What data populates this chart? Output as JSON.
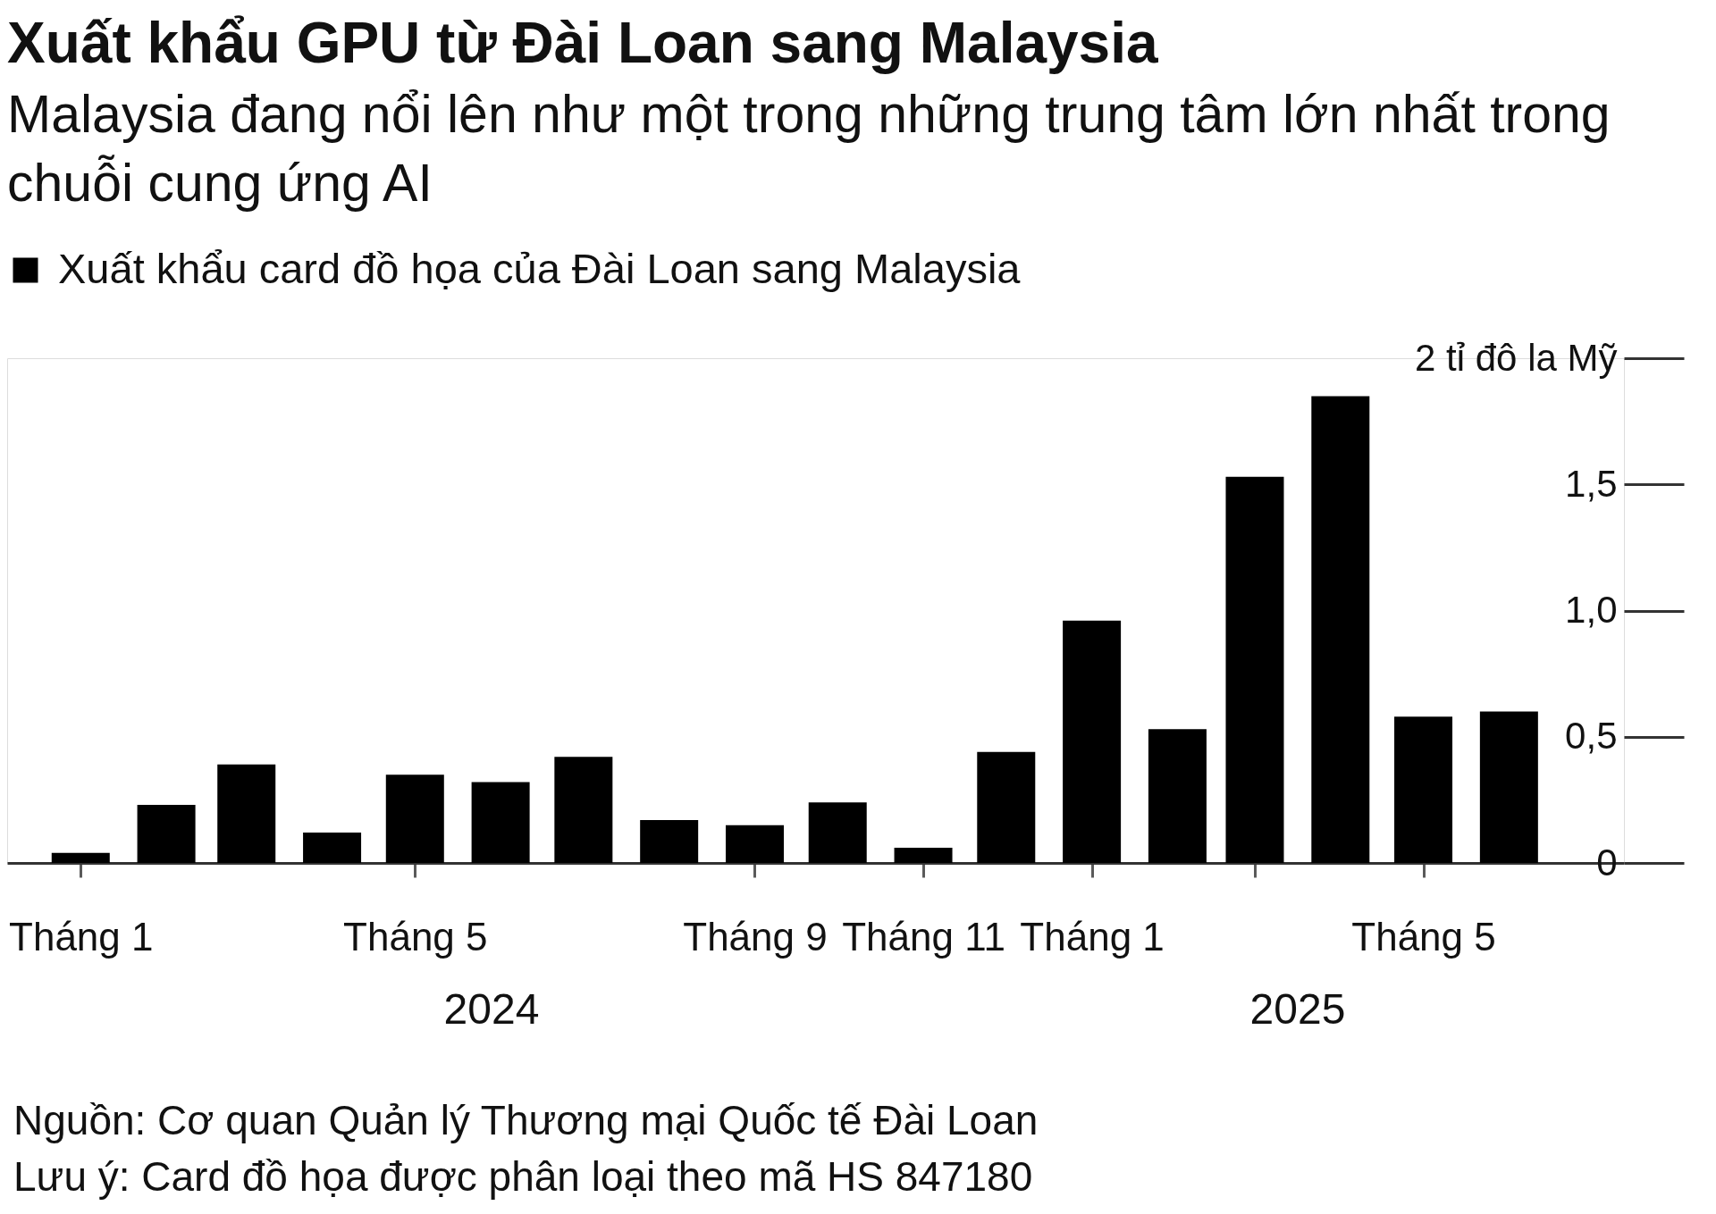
{
  "chart_data": {
    "type": "bar",
    "title": "Xuất khẩu GPU từ Đài Loan sang Malaysia",
    "subtitle": "Malaysia đang nổi lên như một trong những trung tâm lớn nhất trong chuỗi cung ứng AI",
    "x": [
      "2024-01",
      "2024-02",
      "2024-03",
      "2024-04",
      "2024-05",
      "2024-06",
      "2024-07",
      "2024-08",
      "2024-09",
      "2024-10",
      "2024-11",
      "2024-12",
      "2025-01",
      "2025-02",
      "2025-03",
      "2025-04",
      "2025-05",
      "2025-06"
    ],
    "series": [
      {
        "name": "Xuất khẩu card đồ họa của Đài Loan sang Malaysia",
        "color": "#000000",
        "values": [
          0.04,
          0.23,
          0.39,
          0.12,
          0.35,
          0.32,
          0.42,
          0.17,
          0.15,
          0.24,
          0.06,
          0.44,
          0.96,
          0.53,
          1.53,
          1.85,
          0.58,
          0.6
        ]
      }
    ],
    "xlim": [
      "2023-12-07",
      "2025-07-11"
    ],
    "xticks": [
      {
        "value": "2024-01",
        "label": "Tháng 1"
      },
      {
        "value": "2024-05",
        "label": "Tháng 5"
      },
      {
        "value": "2024-09",
        "label": "Tháng 9"
      },
      {
        "value": "2024-11",
        "label": "Tháng 11"
      },
      {
        "value": "2025-01",
        "label": "Tháng 1"
      },
      {
        "value": "2025-03",
        "label": null
      },
      {
        "value": "2025-05",
        "label": "Tháng 5"
      }
    ],
    "ylim": [
      0,
      2
    ],
    "yticks": [
      0,
      {
        "value": 0.5,
        "label": "0,5"
      },
      {
        "value": 1,
        "label": "1,0"
      },
      {
        "value": 1.5,
        "label": "1,5"
      },
      {
        "value": 2,
        "label": "2 tỉ đô la Mỹ"
      }
    ],
    "legend": "top left",
    "annotations": [
      "2024",
      "2025",
      "Nguồn: Cơ quan Quản lý Thương mại Quốc tế Đài Loan",
      "Lưu ý: Card đồ họa được phân loại theo mã HS 847180"
    ]
  }
}
